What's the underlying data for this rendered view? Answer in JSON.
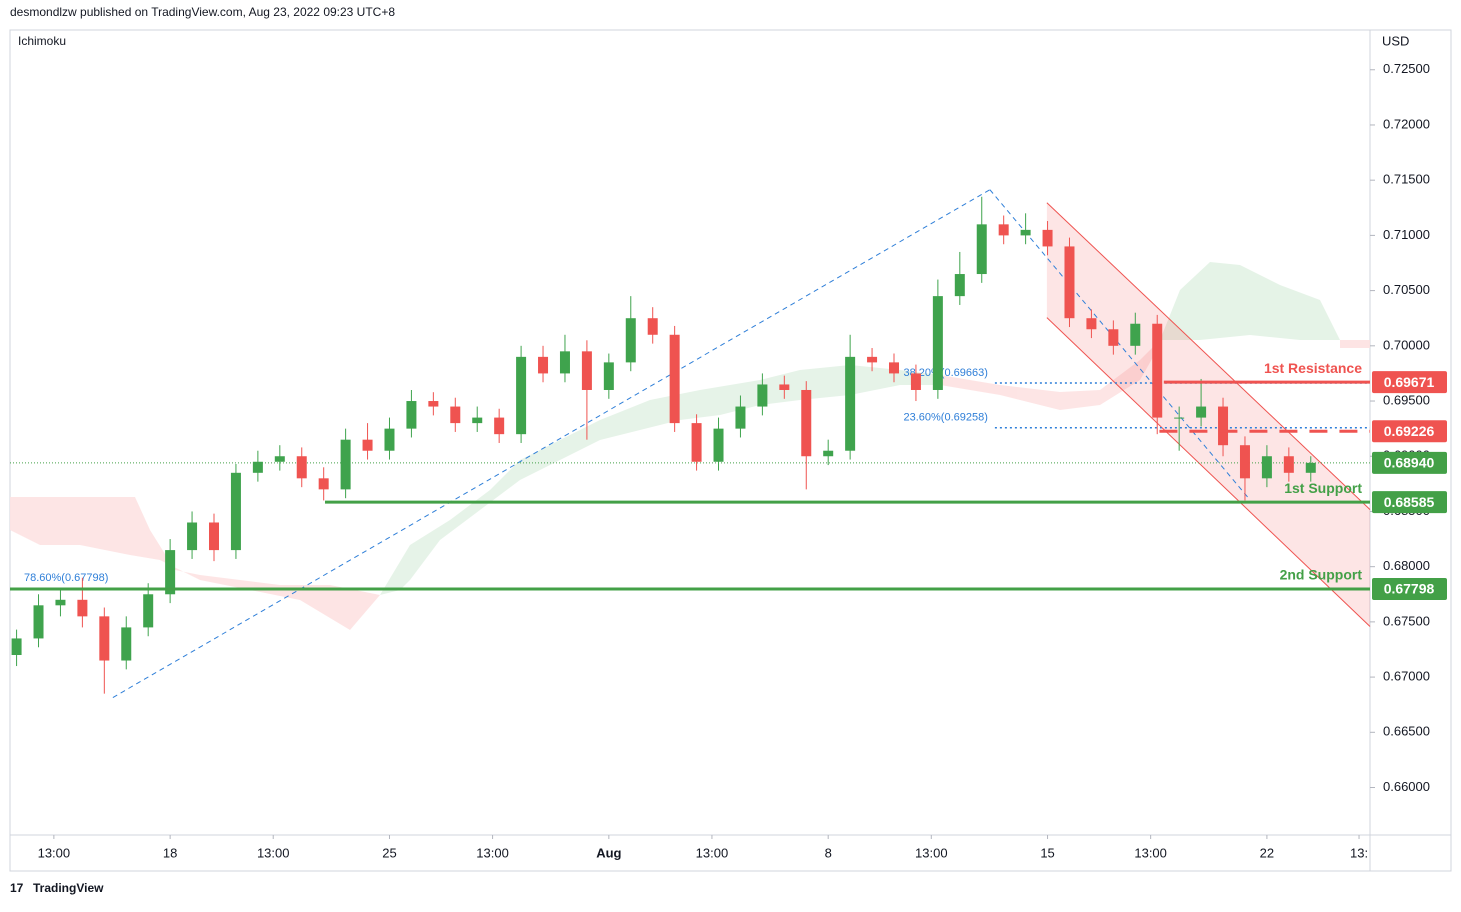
{
  "header": {
    "publisher": "desmondlzw published on TradingView.com, Aug 23, 2022 09:23 UTC+8",
    "indicator": "Ichimoku",
    "currency": "USD",
    "footer": "TradingView"
  },
  "chart_data": {
    "type": "candlestick",
    "up_color": "#3fa34d",
    "down_color": "#ef5350",
    "x": [
      0,
      1,
      2,
      3,
      4,
      5,
      6,
      7,
      8,
      9,
      10,
      11,
      12,
      13,
      14,
      15,
      16,
      17,
      18,
      19,
      20,
      21,
      22,
      23,
      24,
      25,
      26,
      27,
      28,
      29,
      30,
      31,
      32,
      33,
      34,
      35,
      36,
      37,
      38,
      39,
      40,
      41,
      42,
      43,
      44,
      45,
      46,
      47,
      48,
      49,
      50,
      51,
      52,
      53,
      54,
      55,
      56,
      57,
      58,
      59
    ],
    "open": [
      0.672,
      0.6735,
      0.6765,
      0.677,
      0.6755,
      0.6715,
      0.6745,
      0.6775,
      0.6815,
      0.684,
      0.6815,
      0.6885,
      0.6895,
      0.69,
      0.688,
      0.687,
      0.6915,
      0.6905,
      0.6925,
      0.695,
      0.6945,
      0.693,
      0.6935,
      0.692,
      0.699,
      0.6975,
      0.6995,
      0.696,
      0.6985,
      0.7025,
      0.701,
      0.693,
      0.6895,
      0.6925,
      0.6945,
      0.6965,
      0.696,
      0.69,
      0.6905,
      0.699,
      0.6985,
      0.6975,
      0.696,
      0.7045,
      0.7065,
      0.711,
      0.71,
      0.7105,
      0.709,
      0.7025,
      0.7015,
      0.7,
      0.702,
      0.6935,
      0.6935,
      0.6945,
      0.691,
      0.688,
      0.69,
      0.6885
    ],
    "high": [
      0.6743,
      0.6775,
      0.678,
      0.679,
      0.6763,
      0.6755,
      0.6785,
      0.6825,
      0.685,
      0.6848,
      0.6893,
      0.6905,
      0.691,
      0.6908,
      0.689,
      0.6925,
      0.693,
      0.6935,
      0.696,
      0.6958,
      0.6953,
      0.6945,
      0.6943,
      0.7,
      0.7,
      0.701,
      0.7005,
      0.6993,
      0.7045,
      0.7035,
      0.7018,
      0.6938,
      0.6935,
      0.6955,
      0.6975,
      0.6973,
      0.6968,
      0.6915,
      0.701,
      0.6998,
      0.6993,
      0.6983,
      0.706,
      0.7085,
      0.7135,
      0.7118,
      0.712,
      0.7113,
      0.7098,
      0.7033,
      0.7023,
      0.703,
      0.7028,
      0.6945,
      0.697,
      0.6953,
      0.6918,
      0.691,
      0.6908,
      0.69
    ],
    "low": [
      0.671,
      0.6727,
      0.6755,
      0.6745,
      0.6685,
      0.6707,
      0.6737,
      0.6767,
      0.6807,
      0.6805,
      0.6807,
      0.6877,
      0.6887,
      0.6872,
      0.686,
      0.6862,
      0.6897,
      0.6897,
      0.6917,
      0.6937,
      0.6922,
      0.6922,
      0.6912,
      0.6912,
      0.6967,
      0.6967,
      0.6915,
      0.6952,
      0.6977,
      0.7002,
      0.6922,
      0.6887,
      0.6887,
      0.6917,
      0.6937,
      0.6952,
      0.687,
      0.6892,
      0.6897,
      0.6977,
      0.6967,
      0.695,
      0.6952,
      0.7037,
      0.7057,
      0.7092,
      0.7092,
      0.7082,
      0.7017,
      0.7007,
      0.6992,
      0.6992,
      0.692,
      0.6905,
      0.6927,
      0.69,
      0.686,
      0.6872,
      0.6877,
      0.6877
    ],
    "close": [
      0.6735,
      0.6765,
      0.677,
      0.6755,
      0.6715,
      0.6745,
      0.6775,
      0.6815,
      0.684,
      0.6815,
      0.6885,
      0.6895,
      0.69,
      0.688,
      0.687,
      0.6915,
      0.6905,
      0.6925,
      0.695,
      0.6945,
      0.693,
      0.6935,
      0.692,
      0.699,
      0.6975,
      0.6995,
      0.696,
      0.6985,
      0.7025,
      0.701,
      0.693,
      0.6895,
      0.6925,
      0.6945,
      0.6965,
      0.696,
      0.69,
      0.6905,
      0.699,
      0.6985,
      0.6975,
      0.696,
      0.7045,
      0.7065,
      0.711,
      0.71,
      0.7105,
      0.709,
      0.7025,
      0.7015,
      0.7,
      0.702,
      0.6935,
      0.6935,
      0.6945,
      0.691,
      0.688,
      0.69,
      0.6885,
      0.6894
    ],
    "xlim": [
      -0.3,
      61.7
    ],
    "ylim": [
      0.6557,
      0.7286
    ],
    "xticks": [
      {
        "value": 1.7,
        "label": "13:00"
      },
      {
        "value": 7,
        "label": "18"
      },
      {
        "value": 11.7,
        "label": "13:00"
      },
      {
        "value": 17,
        "label": "25"
      },
      {
        "value": 21.7,
        "label": "13:00"
      },
      {
        "value": 27,
        "label": "Aug"
      },
      {
        "value": 31.7,
        "label": "13:00"
      },
      {
        "value": 37,
        "label": "8"
      },
      {
        "value": 41.7,
        "label": "13:00"
      },
      {
        "value": 47,
        "label": "15"
      },
      {
        "value": 51.7,
        "label": "13:00"
      },
      {
        "value": 57,
        "label": "22"
      },
      {
        "value": 61.2,
        "label": "13:"
      }
    ],
    "yticks": [
      {
        "value": 0.725,
        "label": "0.72500"
      },
      {
        "value": 0.72,
        "label": "0.72000"
      },
      {
        "value": 0.715,
        "label": "0.71500"
      },
      {
        "value": 0.71,
        "label": "0.71000"
      },
      {
        "value": 0.705,
        "label": "0.70500"
      },
      {
        "value": 0.7,
        "label": "0.70000"
      },
      {
        "value": 0.695,
        "label": "0.69500"
      },
      {
        "value": 0.69,
        "label": "0.69000"
      },
      {
        "value": 0.685,
        "label": "0.68500"
      },
      {
        "value": 0.68,
        "label": "0.68000"
      },
      {
        "value": 0.675,
        "label": "0.67500"
      },
      {
        "value": 0.67,
        "label": "0.67000"
      },
      {
        "value": 0.665,
        "label": "0.66500"
      },
      {
        "value": 0.66,
        "label": "0.66000"
      }
    ],
    "levels": [
      {
        "name": "1st Resistance",
        "value": 0.69671,
        "start": 52.3,
        "color": "#ef5350",
        "style": "solid"
      },
      {
        "value": 0.69226,
        "start": 52.1,
        "color": "#ef5350",
        "style": "dashed"
      },
      {
        "name": "1st Support",
        "value": 0.68585,
        "start": 14.06,
        "color": "#43a047",
        "style": "solid"
      },
      {
        "name": "2nd Support",
        "value": 0.67798,
        "start": -0.3,
        "color": "#43a047",
        "style": "solid"
      }
    ],
    "last_price": {
      "value": 0.6894,
      "label": "0.68940",
      "color": "#43a047"
    },
    "fib_levels": [
      {
        "text": "38.20%(0.69663)",
        "value": 0.69663,
        "start": 44.6
      },
      {
        "text": "23.60%(0.69258)",
        "value": 0.69258,
        "start": 44.6
      },
      {
        "text": "78.60%(0.67798)",
        "value": 0.67798
      }
    ],
    "trendlines": [
      {
        "x": [
          4.39,
          44.37
        ],
        "y": [
          0.66815,
          0.71414
        ]
      },
      {
        "x": [
          44.37,
          56.22
        ],
        "y": [
          0.71414,
          0.68607
        ]
      }
    ],
    "channel": {
      "upper": {
        "x": [
          46.97,
          61.7
        ],
        "y": [
          0.71296,
          0.68517
        ]
      },
      "lower": {
        "x": [
          46.97,
          61.7
        ],
        "y": [
          0.70255,
          0.67458
        ]
      },
      "color": "#ef5350"
    }
  }
}
